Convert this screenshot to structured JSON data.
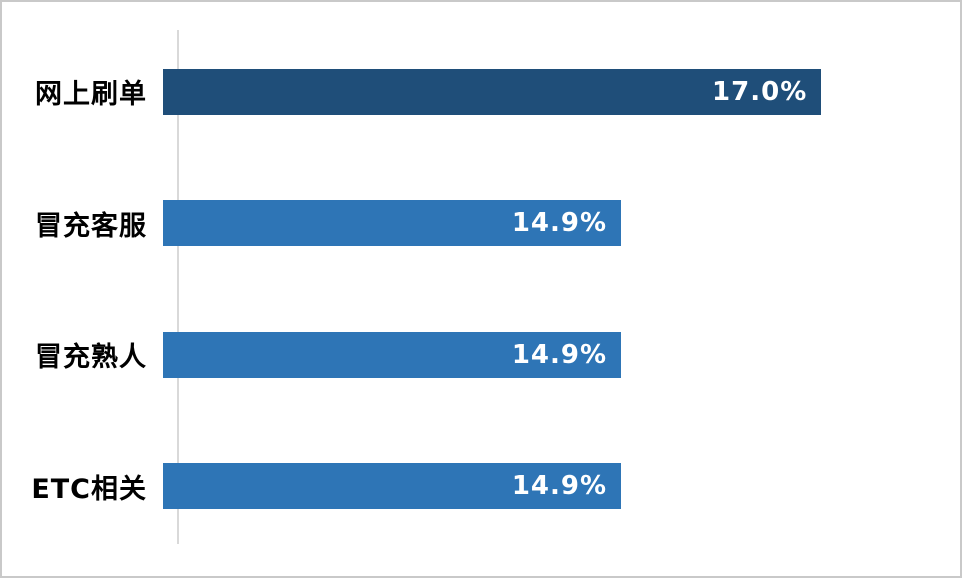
{
  "chart_data": {
    "type": "bar",
    "orientation": "horizontal",
    "title": "",
    "xlabel": "",
    "ylabel": "",
    "legend": false,
    "grid": false,
    "categories": [
      "网上刷单",
      "冒充客服",
      "冒充熟人",
      "ETC相关"
    ],
    "values": [
      17.0,
      14.9,
      14.9,
      14.9
    ],
    "value_labels": [
      "17.0%",
      "14.9%",
      "14.9%",
      "14.9%"
    ],
    "bar_colors": [
      "#1F4E79",
      "#2E75B6",
      "#2E75B6",
      "#2E75B6"
    ],
    "bar_width_pct": [
      84.5,
      58.8,
      58.8,
      58.8
    ],
    "axis_line_color": "#d9d9d9",
    "label_color": "#000000",
    "value_label_color": "#ffffff",
    "background_color": "#ffffff"
  }
}
